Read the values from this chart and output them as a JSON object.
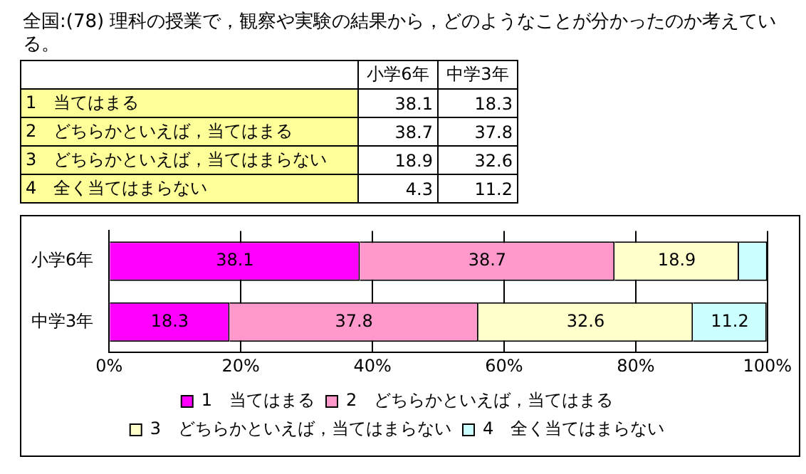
{
  "chart_data": [
    {
      "type": "other",
      "title": "全国:(78) 理科の授業で，観察や実験の結果から，どのようなことが分かったのか考えている。",
      "categories": [
        "小学6年",
        "中学3年"
      ],
      "series": [
        {
          "name": "1　当てはまる",
          "values": [
            38.1,
            18.3
          ]
        },
        {
          "name": "2　どちらかといえば，当てはまる",
          "values": [
            38.7,
            37.8
          ]
        },
        {
          "name": "3　どちらかといえば，当てはまらない",
          "values": [
            18.9,
            32.6
          ]
        },
        {
          "name": "4　全く当てはまらない",
          "values": [
            4.3,
            11.2
          ]
        }
      ],
      "data_labels": true
    },
    {
      "type": "bar",
      "orientation": "horizontal",
      "stacked": true,
      "categories": [
        "小学6年",
        "中学3年"
      ],
      "series": [
        {
          "name": "1　当てはまる",
          "color": "#ff00ff",
          "values": [
            38.1,
            18.3
          ],
          "value_labels": [
            "38.1",
            "18.3"
          ]
        },
        {
          "name": "2　どちらかといえば，当てはまる",
          "color": "#ff99cc",
          "values": [
            38.7,
            37.8
          ],
          "value_labels": [
            "38.7",
            "37.8"
          ]
        },
        {
          "name": "3　どちらかといえば，当てはまらない",
          "color": "#ffffcc",
          "values": [
            18.9,
            32.6
          ],
          "value_labels": [
            "18.9",
            "32.6"
          ]
        },
        {
          "name": "4　全く当てはまらない",
          "color": "#ccffff",
          "values": [
            4.3,
            11.2
          ],
          "value_labels": [
            null,
            "11.2"
          ]
        }
      ],
      "xlim": [
        0,
        100
      ],
      "xticks": [
        {
          "value": 0,
          "label": "0%"
        },
        {
          "value": 20,
          "label": "20%"
        },
        {
          "value": 40,
          "label": "40%"
        },
        {
          "value": 60,
          "label": "60%"
        },
        {
          "value": 80,
          "label": "80%"
        },
        {
          "value": 100,
          "label": "100%"
        }
      ],
      "grid": "x",
      "legend": "bottom"
    }
  ]
}
